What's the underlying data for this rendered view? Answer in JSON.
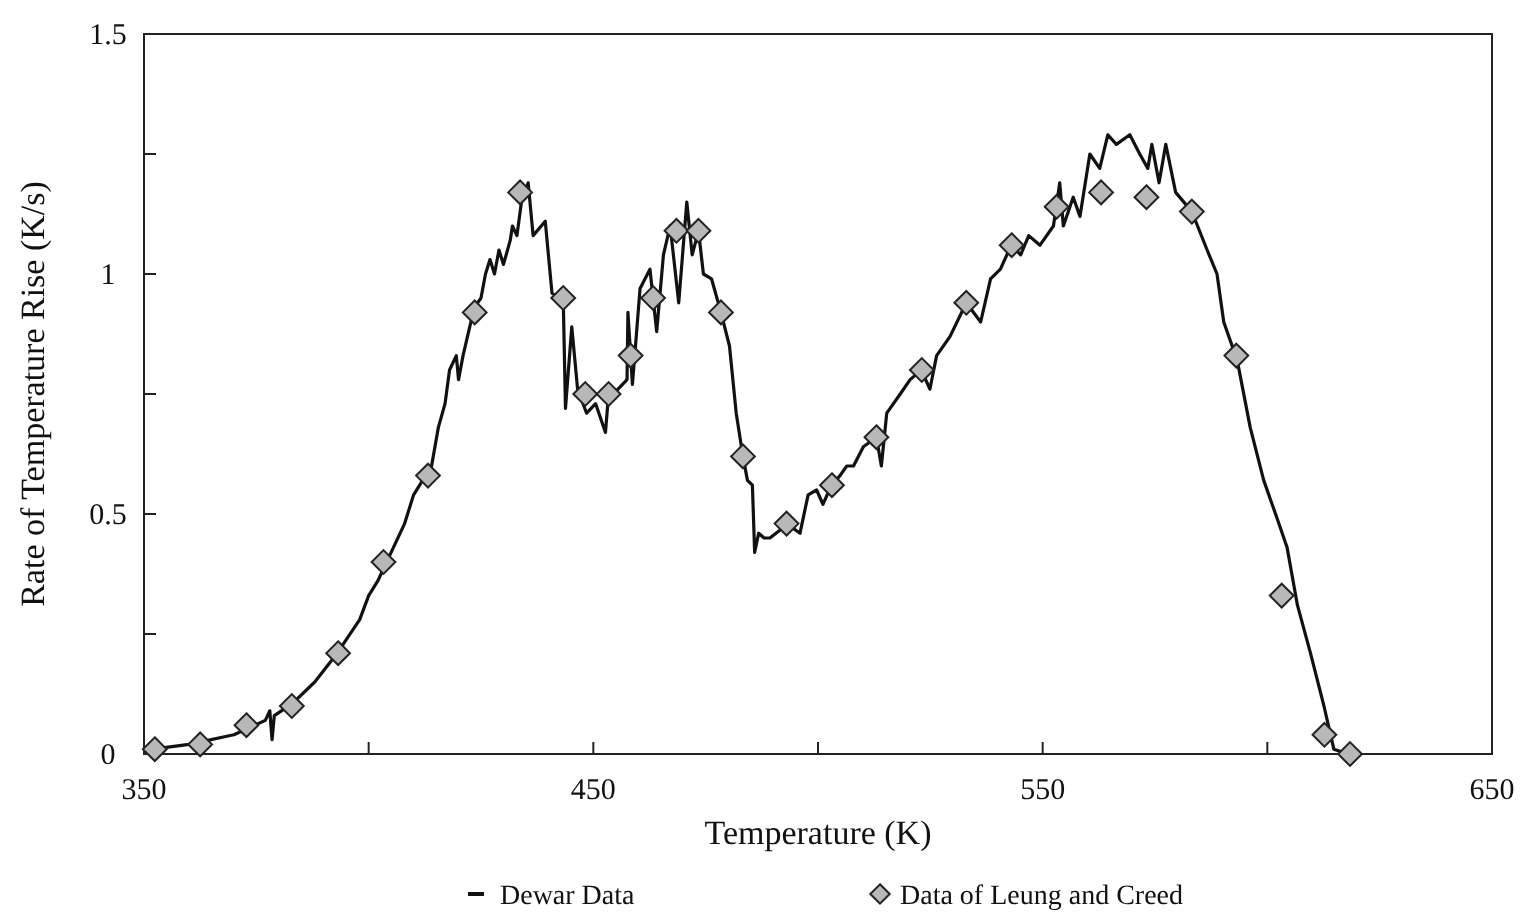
{
  "chart_data": {
    "type": "line",
    "xlabel": "Temperature (K)",
    "ylabel": "Rate of Temperature Rise (K/s)",
    "xlim": [
      350,
      650
    ],
    "xticks": [
      350,
      {
        "value": 400,
        "label": null
      },
      450,
      {
        "value": 500,
        "label": null
      },
      550,
      {
        "value": 600,
        "label": null
      },
      650
    ],
    "ylim": [
      0,
      1.5
    ],
    "yticks": [
      0,
      {
        "value": 0.25,
        "label": null
      },
      0.5,
      {
        "value": 0.75,
        "label": null
      },
      1,
      {
        "value": 1.25,
        "label": null
      },
      1.5
    ],
    "grid": false,
    "legend": "bottom",
    "series": [
      {
        "name": "Dewar Data",
        "marker": "none",
        "line_style": "solid",
        "color": "#111111",
        "x": [
          352,
          360,
          370,
          377,
          378,
          378.5,
          379,
          383,
          388,
          393,
          398,
          400,
          402,
          405,
          408,
          410,
          412,
          414,
          415.5,
          417,
          418,
          419.5,
          420,
          421,
          422,
          423.5,
          425,
          426,
          427,
          428,
          429,
          430,
          431.5,
          432,
          433,
          434,
          435.5,
          436.6,
          439.3,
          440.8,
          443.3,
          443.8,
          445.2,
          446.5,
          448.5,
          450.5,
          452.7,
          453.4,
          455.5,
          457.5,
          457.7,
          458.7,
          460.4,
          462.6,
          464.1,
          465.6,
          467.1,
          469,
          470.8,
          472,
          473.4,
          474.5,
          476.3,
          478.4,
          480.3,
          481.8,
          483.3,
          484.3,
          485.4,
          485.9,
          486.8,
          488,
          489.3,
          492,
          493,
          496,
          497.8,
          499.7,
          501.1,
          503,
          504.9,
          506.4,
          507.9,
          510.1,
          513,
          514.1,
          515.3,
          518.3,
          520.5,
          523,
          524.9,
          526.4,
          529.4,
          533,
          536.2,
          538.4,
          540.6,
          543,
          545.1,
          546.9,
          549.4,
          552.4,
          553.8,
          554.6,
          556.8,
          558.3,
          560.5,
          562.7,
          564.5,
          566.4,
          569.4,
          571.6,
          573.4,
          574.3,
          575.9,
          577.4,
          579.6,
          583.2,
          586.6,
          588.8,
          590.3,
          593.3,
          596.2,
          599.2,
          602.2,
          604.4,
          606.7,
          609.6,
          612.6,
          614.8,
          618
        ],
        "values": [
          0.01,
          0.02,
          0.04,
          0.07,
          0.09,
          0.03,
          0.08,
          0.105,
          0.15,
          0.21,
          0.28,
          0.33,
          0.36,
          0.42,
          0.48,
          0.54,
          0.57,
          0.6,
          0.68,
          0.73,
          0.8,
          0.83,
          0.78,
          0.83,
          0.87,
          0.93,
          0.95,
          1.0,
          1.03,
          1.0,
          1.05,
          1.02,
          1.07,
          1.1,
          1.08,
          1.15,
          1.19,
          1.08,
          1.11,
          0.96,
          0.95,
          0.72,
          0.89,
          0.76,
          0.71,
          0.73,
          0.67,
          0.75,
          0.76,
          0.78,
          0.92,
          0.77,
          0.97,
          1.01,
          0.88,
          1.04,
          1.1,
          0.94,
          1.15,
          1.04,
          1.09,
          1.0,
          0.99,
          0.92,
          0.85,
          0.71,
          0.62,
          0.57,
          0.56,
          0.42,
          0.46,
          0.45,
          0.45,
          0.47,
          0.48,
          0.46,
          0.54,
          0.55,
          0.52,
          0.56,
          0.58,
          0.6,
          0.6,
          0.64,
          0.66,
          0.6,
          0.71,
          0.75,
          0.78,
          0.8,
          0.76,
          0.83,
          0.87,
          0.94,
          0.9,
          0.99,
          1.01,
          1.06,
          1.04,
          1.08,
          1.06,
          1.1,
          1.19,
          1.1,
          1.16,
          1.12,
          1.25,
          1.22,
          1.29,
          1.27,
          1.29,
          1.25,
          1.22,
          1.27,
          1.19,
          1.27,
          1.17,
          1.13,
          1.05,
          1.0,
          0.9,
          0.82,
          0.68,
          0.57,
          0.49,
          0.43,
          0.31,
          0.21,
          0.1,
          0.01,
          0
        ]
      },
      {
        "name": "Data of Leung and Creed",
        "type": "scatter",
        "marker": "diamond",
        "color": "#b8b8b8",
        "x": [
          352.4,
          362.5,
          372.8,
          382.9,
          393.2,
          403.3,
          413.2,
          423.6,
          433.7,
          443.3,
          448.2,
          453.4,
          458.3,
          463.3,
          468.5,
          473.4,
          478.4,
          483.3,
          493,
          503.1,
          513,
          523.1,
          533,
          543.1,
          553.1,
          563,
          573.1,
          583.2,
          593.1,
          603.2,
          612.7,
          618.4
        ],
        "values": [
          0.01,
          0.02,
          0.06,
          0.1,
          0.21,
          0.4,
          0.58,
          0.92,
          1.17,
          0.95,
          0.75,
          0.75,
          0.83,
          0.95,
          1.09,
          1.09,
          0.92,
          0.62,
          0.48,
          0.56,
          0.66,
          0.8,
          0.94,
          1.06,
          1.14,
          1.17,
          1.16,
          1.13,
          0.83,
          0.33,
          0.04,
          0
        ]
      }
    ]
  }
}
